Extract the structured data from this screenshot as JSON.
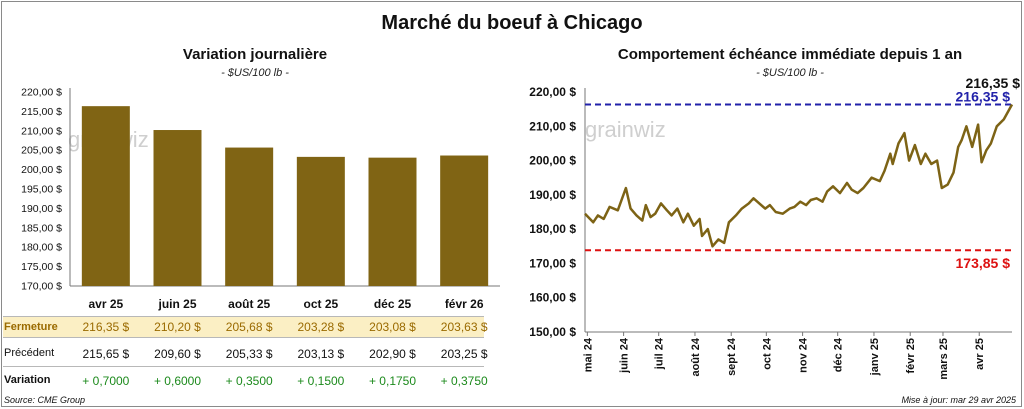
{
  "title": "Marché du boeuf à Chicago",
  "left": {
    "subtitle": "Variation journalière",
    "unit": "- $US/100 lb -",
    "watermark": "grainwiz"
  },
  "right": {
    "subtitle": "Comportement échéance immédiate depuis 1 an",
    "unit": "- $US/100 lb -",
    "watermark": "grainwiz",
    "current_label": "216,35 $",
    "max_label": "216,35 $",
    "min_label": "173,85 $"
  },
  "table": {
    "fermeture_label": "Fermeture",
    "precedent_label": "Précédent",
    "variation_label": "Variation",
    "fermeture": [
      "216,35  $",
      "210,20  $",
      "205,68  $",
      "203,28  $",
      "203,08  $",
      "203,63  $"
    ],
    "precedent": [
      "215,65  $",
      "209,60  $",
      "205,33  $",
      "203,13  $",
      "202,90  $",
      "203,25  $"
    ],
    "variation": [
      "+ 0,7000",
      "+ 0,6000",
      "+ 0,3500",
      "+ 0,1500",
      "+ 0,1750",
      "+ 0,3750"
    ]
  },
  "footer": {
    "source": "Source: CME Group",
    "updated": "Mise à jour: mar 29 avr 2025"
  },
  "colors": {
    "bar": "#806414",
    "line": "#7d6315",
    "max_line": "#2222aa",
    "min_line": "#dd1111",
    "table_highlight": "#fbefc4",
    "positive": "#1c8a1c"
  },
  "chart_data": [
    {
      "type": "bar",
      "categories": [
        "avr 25",
        "juin 25",
        "août 25",
        "oct 25",
        "déc 25",
        "févr 26"
      ],
      "values": [
        216.35,
        210.2,
        205.68,
        203.28,
        203.08,
        203.63
      ],
      "title": "Variation journalière",
      "ylabel": "$US/100 lb",
      "ylim": [
        170,
        220
      ],
      "yticks": [
        170,
        175,
        180,
        185,
        190,
        195,
        200,
        205,
        210,
        215,
        220
      ],
      "ytick_labels": [
        "170,00 $",
        "175,00 $",
        "180,00 $",
        "185,00 $",
        "190,00 $",
        "195,00 $",
        "200,00 $",
        "205,00 $",
        "210,00 $",
        "215,00 $",
        "220,00 $"
      ],
      "grid": false
    },
    {
      "type": "line",
      "title": "Comportement échéance immédiate depuis 1 an",
      "ylabel": "$US/100 lb",
      "ylim": [
        150,
        220
      ],
      "yticks": [
        150,
        160,
        170,
        180,
        190,
        200,
        210,
        220
      ],
      "ytick_labels": [
        "150,00 $",
        "160,00 $",
        "170,00 $",
        "180,00 $",
        "190,00 $",
        "200,00 $",
        "210,00 $",
        "220,00 $"
      ],
      "xlim": [
        "2024-04-29",
        "2025-04-29"
      ],
      "xtick_dates": [
        "2024-05-01",
        "2024-06-01",
        "2024-07-01",
        "2024-08-01",
        "2024-09-01",
        "2024-10-01",
        "2024-11-01",
        "2024-12-01",
        "2025-01-01",
        "2025-02-01",
        "2025-03-01",
        "2025-04-01"
      ],
      "xtick_labels": [
        "mai 24",
        "juin 24",
        "juil 24",
        "août 24",
        "sept 24",
        "oct 24",
        "nov 24",
        "déc 24",
        "janv 25",
        "févr 25",
        "mars 25",
        "avr 25"
      ],
      "reference_lines": [
        {
          "label": "216,35 $",
          "value": 216.35,
          "color": "#2222aa"
        },
        {
          "label": "173,85 $",
          "value": 173.85,
          "color": "#dd1111"
        }
      ],
      "series": [
        {
          "x": [
            "2024-04-29",
            "2024-05-06",
            "2024-05-10",
            "2024-05-15",
            "2024-05-20",
            "2024-05-27",
            "2024-06-03",
            "2024-06-07",
            "2024-06-12",
            "2024-06-17",
            "2024-06-20",
            "2024-06-24",
            "2024-06-28",
            "2024-07-03",
            "2024-07-08",
            "2024-07-12",
            "2024-07-17",
            "2024-07-22",
            "2024-07-26",
            "2024-07-31",
            "2024-08-05",
            "2024-08-07",
            "2024-08-12",
            "2024-08-16",
            "2024-08-21",
            "2024-08-26",
            "2024-08-30",
            "2024-09-05",
            "2024-09-10",
            "2024-09-16",
            "2024-09-20",
            "2024-09-25",
            "2024-09-30",
            "2024-10-04",
            "2024-10-09",
            "2024-10-15",
            "2024-10-21",
            "2024-10-25",
            "2024-10-30",
            "2024-11-04",
            "2024-11-08",
            "2024-11-13",
            "2024-11-18",
            "2024-11-22",
            "2024-11-27",
            "2024-12-03",
            "2024-12-09",
            "2024-12-13",
            "2024-12-18",
            "2024-12-23",
            "2024-12-30",
            "2025-01-06",
            "2025-01-10",
            "2025-01-15",
            "2025-01-17",
            "2025-01-22",
            "2025-01-27",
            "2025-01-31",
            "2025-02-05",
            "2025-02-10",
            "2025-02-14",
            "2025-02-19",
            "2025-02-24",
            "2025-02-28",
            "2025-03-05",
            "2025-03-10",
            "2025-03-14",
            "2025-03-17",
            "2025-03-21",
            "2025-03-26",
            "2025-03-31",
            "2025-04-03",
            "2025-04-07",
            "2025-04-11",
            "2025-04-16",
            "2025-04-22",
            "2025-04-29"
          ],
          "y": [
            184.5,
            182.0,
            184.0,
            183.0,
            186.5,
            185.5,
            192.0,
            186.0,
            184.0,
            182.5,
            187.0,
            183.5,
            184.5,
            187.5,
            185.5,
            184.0,
            186.0,
            182.0,
            184.5,
            181.0,
            183.0,
            178.0,
            180.0,
            175.0,
            177.0,
            176.0,
            182.0,
            184.0,
            186.0,
            187.5,
            189.0,
            187.5,
            186.0,
            187.0,
            185.0,
            184.5,
            186.0,
            186.5,
            188.0,
            187.0,
            188.5,
            189.0,
            188.0,
            191.0,
            192.5,
            190.5,
            193.5,
            191.5,
            190.5,
            192.0,
            195.0,
            194.0,
            197.0,
            202.0,
            199.0,
            205.0,
            208.0,
            200.0,
            204.5,
            199.0,
            202.0,
            199.0,
            200.0,
            192.0,
            193.0,
            196.5,
            204.0,
            206.0,
            210.0,
            204.0,
            210.5,
            199.5,
            203.0,
            205.0,
            210.0,
            212.0,
            216.35
          ]
        }
      ]
    }
  ]
}
